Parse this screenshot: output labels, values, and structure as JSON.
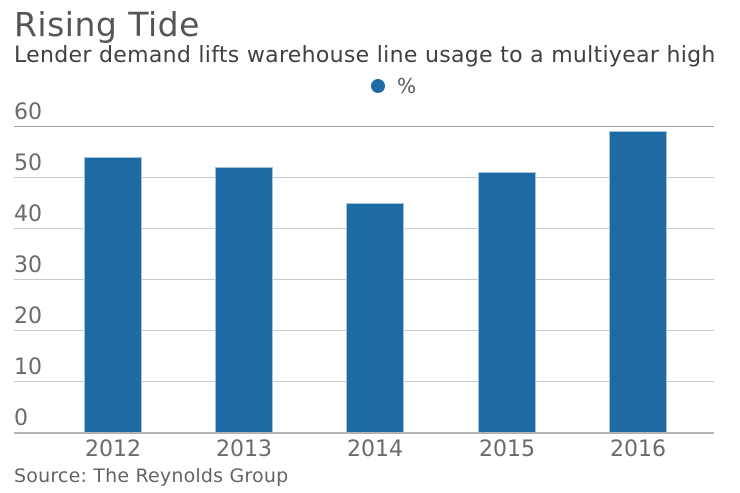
{
  "header": {
    "title": "Rising Tide",
    "subtitle": "Lender demand lifts warehouse line usage to a multiyear high"
  },
  "legend": {
    "label": "%"
  },
  "source": {
    "text": "Source: The Reynolds Group"
  },
  "colors": {
    "bar": "#1e6ba3",
    "bar_edge": "#a5c3dc",
    "gridline": "#c9cacb",
    "top_gridline": "#a3a4a6",
    "baseline": "#b2b3b5",
    "title_text": "#545557",
    "subtitle_text": "#404143",
    "axis_text": "#6a6b6e",
    "source_text": "#636466"
  },
  "chart_data": {
    "type": "bar",
    "title": "Rising Tide",
    "subtitle": "Lender demand lifts warehouse line usage to a multiyear high",
    "categories": [
      "2012",
      "2013",
      "2014",
      "2015",
      "2016"
    ],
    "values": [
      54,
      52,
      45,
      51,
      59
    ],
    "series_name": "%",
    "xlabel": "",
    "ylabel": "",
    "ylim": [
      0,
      60
    ],
    "yticks": [
      0,
      10,
      20,
      30,
      40,
      50,
      60
    ],
    "grid": true,
    "legend_position": "top-center",
    "bar_color": "#1e6ba3",
    "source": "Source: The Reynolds Group"
  }
}
